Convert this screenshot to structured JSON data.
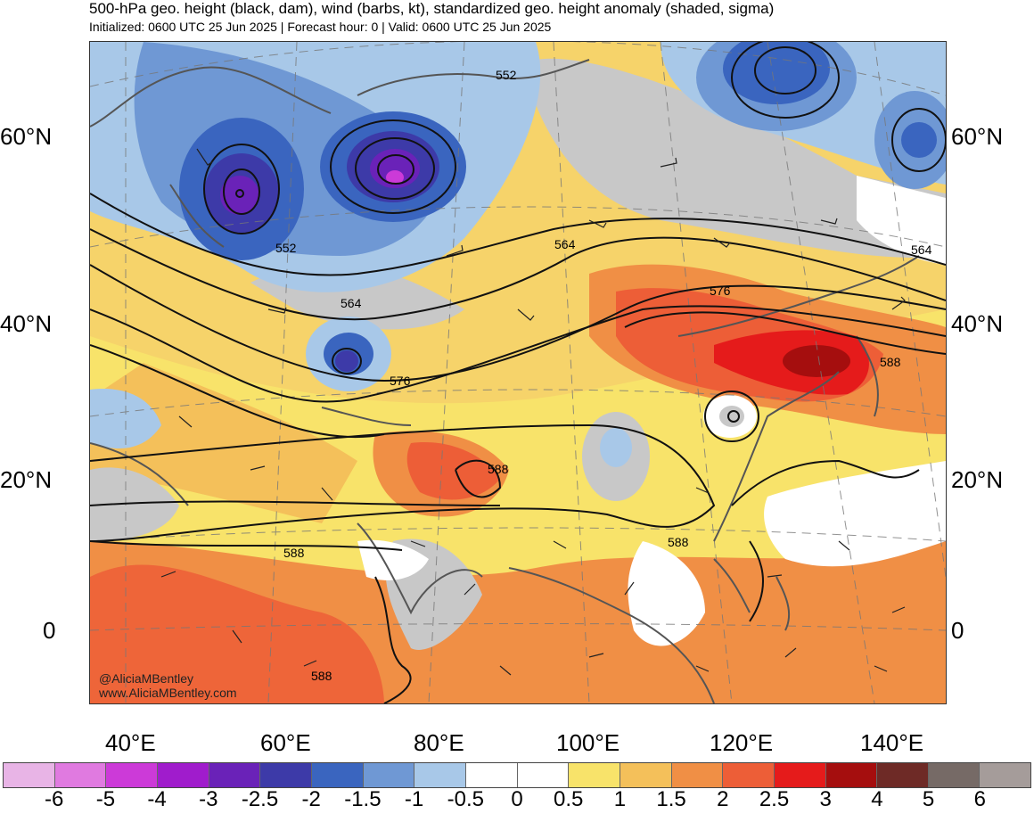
{
  "title": "500-hPa geo. height (black, dam), wind (barbs, kt), standardized geo. height anomaly (shaded, sigma)",
  "subtitle": "Initialized: 0600 UTC 25 Jun 2025 | Forecast hour: 0 | Valid: 0600 UTC 25 Jun 2025",
  "credit": {
    "handle": "@AliciaMBentley",
    "site": "www.AliciaMBentley.com"
  },
  "lat_labels": [
    "60°N",
    "40°N",
    "20°N",
    "0"
  ],
  "lon_labels": [
    "40°E",
    "60°E",
    "80°E",
    "100°E",
    "120°E",
    "140°E"
  ],
  "contour_labels": [
    "552",
    "552",
    "564",
    "564",
    "564",
    "576",
    "576",
    "588",
    "588",
    "588",
    "588",
    "588"
  ],
  "colorbar": {
    "ticks": [
      "-6",
      "-5",
      "-4",
      "-3",
      "-2.5",
      "-2",
      "-1.5",
      "-1",
      "-0.5",
      "0",
      "0.5",
      "1",
      "1.5",
      "2",
      "2.5",
      "3",
      "4",
      "5",
      "6"
    ],
    "colors": [
      "#e8b4e6",
      "#e07ae0",
      "#cc3ad8",
      "#a01ccc",
      "#6a22b8",
      "#3d3aa8",
      "#3a65bf",
      "#6f98d4",
      "#a8c8e8",
      "#ffffff",
      "#ffffff",
      "#f8e36a",
      "#f4c05a",
      "#f08f45",
      "#ed5e37",
      "#e51b1b",
      "#a50e0e",
      "#6e2a26",
      "#766a66",
      "#a59c9a"
    ]
  },
  "colors": {
    "neutral_gray": "#c8c8c8",
    "coastline": "#555555",
    "contour": "#111111"
  }
}
